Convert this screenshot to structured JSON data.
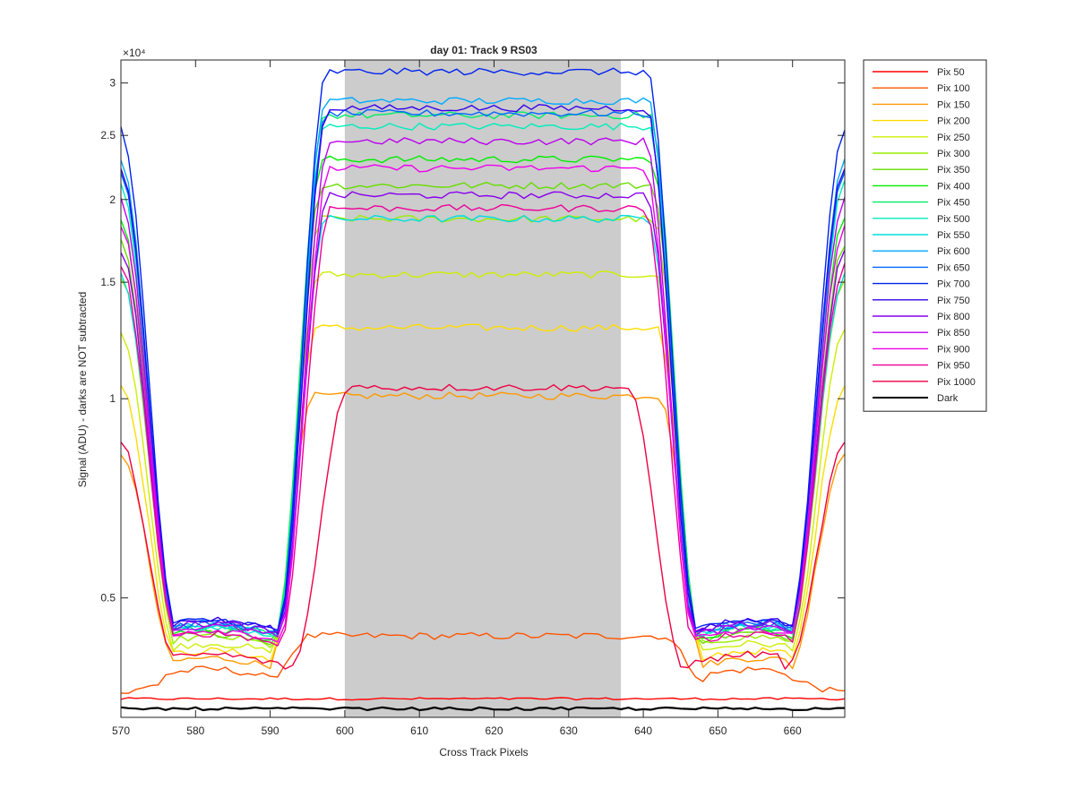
{
  "chart_data": {
    "type": "line",
    "title": "day 01: Track 9  RS03",
    "xlabel": "Cross Track Pixels",
    "ylabel": "Signal (ADU) - darks are NOT subtracted",
    "xlim": [
      570,
      667
    ],
    "ylim": [
      3300,
      32500
    ],
    "y_scale": "log",
    "y_exponent_label": "×10⁴",
    "x_ticks": [
      570,
      580,
      590,
      600,
      610,
      620,
      630,
      640,
      650,
      660
    ],
    "x_tick_labels": [
      "570",
      "580",
      "590",
      "600",
      "610",
      "620",
      "630",
      "640",
      "650",
      "660"
    ],
    "y_ticks": [
      5000,
      10000,
      15000,
      20000,
      25000,
      30000
    ],
    "y_tick_labels": [
      "0.5",
      "1",
      "1.5",
      "2",
      "2.5",
      "3"
    ],
    "shaded_region": {
      "x0": 600,
      "x1": 637,
      "color": "#cccccc"
    },
    "legend_position": "outside-top-right",
    "grid": false,
    "series": [
      {
        "name": "Pix 50",
        "color": "#ff0000",
        "plateau": 3520,
        "floor": 3500,
        "left_edge": 590.0
      },
      {
        "name": "Pix 100",
        "color": "#ff5500",
        "plateau": 4380,
        "floor": 3750,
        "left_edge": 590.0
      },
      {
        "name": "Pix 150",
        "color": "#ff9900",
        "plateau": 10100,
        "floor": 3900,
        "left_edge": 590.2
      },
      {
        "name": "Pix 200",
        "color": "#ffdd00",
        "plateau": 12800,
        "floor": 4000,
        "left_edge": 590.5
      },
      {
        "name": "Pix 250",
        "color": "#ccee00",
        "plateau": 15400,
        "floor": 4100,
        "left_edge": 590.7
      },
      {
        "name": "Pix 300",
        "color": "#99ee00",
        "plateau": 18700,
        "floor": 4200,
        "left_edge": 590.9
      },
      {
        "name": "Pix 350",
        "color": "#66dd00",
        "plateau": 21000,
        "floor": 4250,
        "left_edge": 591.0
      },
      {
        "name": "Pix 400",
        "color": "#00ee00",
        "plateau": 23000,
        "floor": 4300,
        "left_edge": 591.1
      },
      {
        "name": "Pix 450",
        "color": "#00ee66",
        "plateau": 26800,
        "floor": 4350,
        "left_edge": 591.2
      },
      {
        "name": "Pix 500",
        "color": "#00eebb",
        "plateau": 25800,
        "floor": 4350,
        "left_edge": 591.3
      },
      {
        "name": "Pix 550",
        "color": "#00dddd",
        "plateau": 18700,
        "floor": 4350,
        "left_edge": 591.4
      },
      {
        "name": "Pix 600",
        "color": "#00aaff",
        "plateau": 28200,
        "floor": 4400,
        "left_edge": 591.4
      },
      {
        "name": "Pix 650",
        "color": "#0066ff",
        "plateau": 27000,
        "floor": 4400,
        "left_edge": 591.5
      },
      {
        "name": "Pix 700",
        "color": "#0022ee",
        "plateau": 31200,
        "floor": 4450,
        "left_edge": 591.5
      },
      {
        "name": "Pix 750",
        "color": "#3300ee",
        "plateau": 27500,
        "floor": 4450,
        "left_edge": 591.6
      },
      {
        "name": "Pix 800",
        "color": "#8800ee",
        "plateau": 20300,
        "floor": 4400,
        "left_edge": 591.6
      },
      {
        "name": "Pix 850",
        "color": "#bb00ee",
        "plateau": 24500,
        "floor": 4350,
        "left_edge": 591.7
      },
      {
        "name": "Pix 900",
        "color": "#ee00ee",
        "plateau": 22300,
        "floor": 4300,
        "left_edge": 591.7
      },
      {
        "name": "Pix 950",
        "color": "#ee0099",
        "plateau": 19400,
        "floor": 4250,
        "left_edge": 591.8
      },
      {
        "name": "Pix 1000",
        "color": "#ee0044",
        "plateau": 10400,
        "floor": 3950,
        "left_edge": 593.5
      },
      {
        "name": "Dark",
        "color": "#000000",
        "plateau": 3400,
        "floor": 3400,
        "left_edge": 590.0
      }
    ]
  }
}
